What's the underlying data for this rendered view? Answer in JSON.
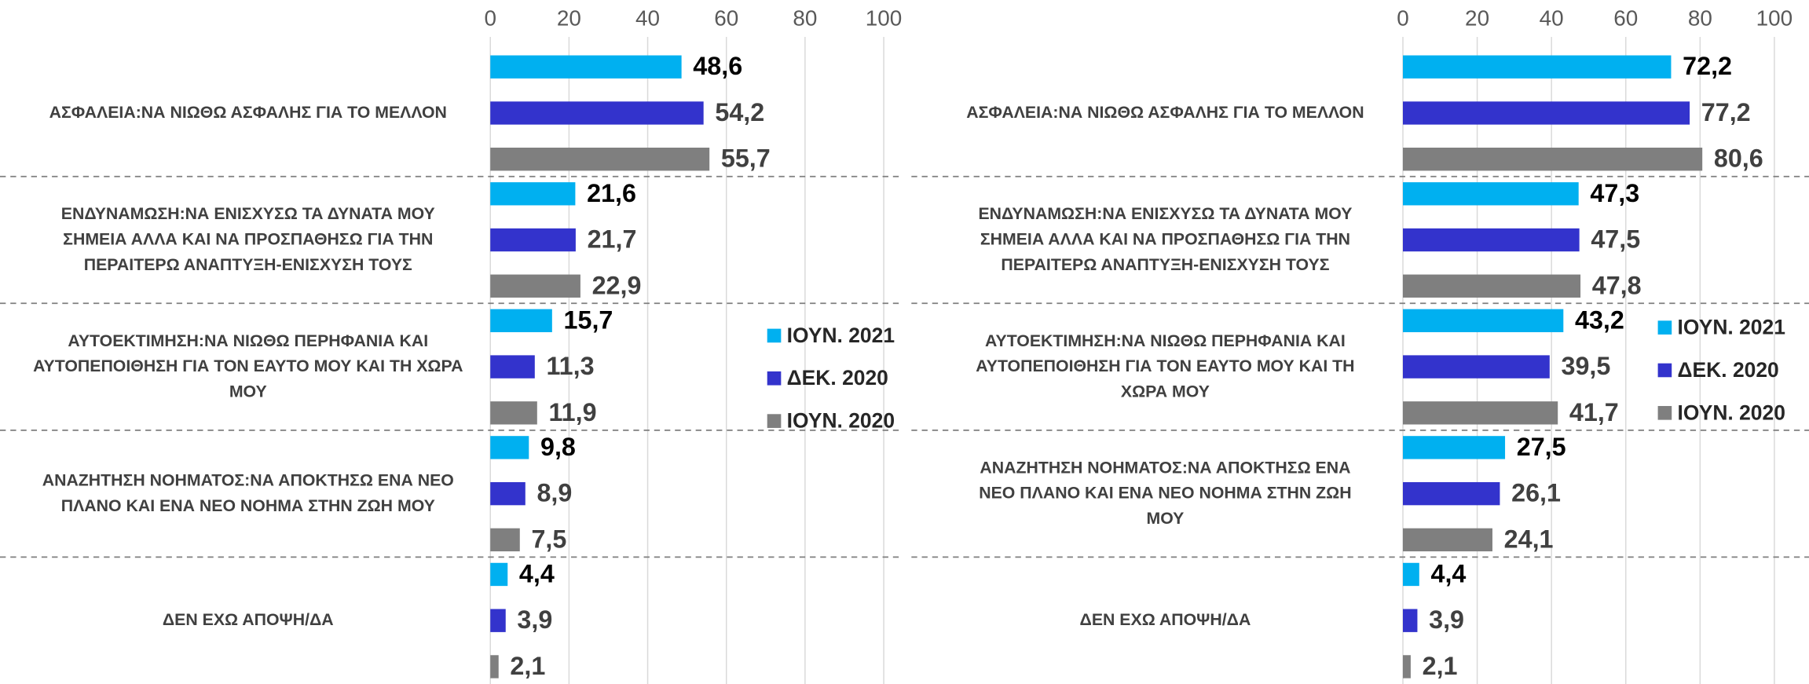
{
  "chart_data": [
    {
      "type": "barh",
      "categories": [
        [
          "ΑΣΦΑΛΕΙΑ:ΝΑ ΝΙΩΘΩ ΑΣΦΑΛΗΣ ΓΙΑ ΤΟ ΜΕΛΛΟΝ"
        ],
        [
          "ΕΝΔΥΝΑΜΩΣΗ:ΝΑ ΕΝΙΣΧΥΣΩ ΤΑ ΔΥΝΑΤΑ ΜΟΥ",
          "ΣΗΜΕΙΑ ΑΛΛΑ ΚΑΙ ΝΑ ΠΡΟΣΠΑΘΗΣΩ ΓΙΑ ΤΗΝ",
          "ΠΕΡΑΙΤΕΡΩ ΑΝΑΠΤΥΞΗ-ΕΝΙΣΧΥΣΗ ΤΟΥΣ"
        ],
        [
          "ΑΥΤΟΕΚΤΙΜΗΣΗ:ΝΑ ΝΙΩΘΩ ΠΕΡΗΦΑΝΙΑ ΚΑΙ",
          "ΑΥΤΟΠΕΠΟΙΘΗΣΗ ΓΙΑ ΤΟΝ ΕΑΥΤΟ ΜΟΥ ΚΑΙ ΤΗ ΧΩΡΑ",
          "ΜΟΥ"
        ],
        [
          "ΑΝΑΖΗΤΗΣΗ ΝΟΗΜΑΤΟΣ:ΝΑ ΑΠΟΚΤΗΣΩ ΕΝΑ ΝΕΟ",
          "ΠΛΑΝΟ ΚΑΙ ΕΝΑ ΝΕΟ ΝΟΗΜΑ ΣΤΗΝ ΖΩΗ ΜΟΥ"
        ],
        [
          "ΔΕΝ ΕΧΩ ΑΠΟΨΗ/ΔΑ"
        ]
      ],
      "series": [
        {
          "name": "ΙΟΥΝ. 2021",
          "color": "#00b0f0",
          "values": [
            48.6,
            21.6,
            15.7,
            9.8,
            4.4
          ],
          "value_labels": [
            "48,6",
            "21,6",
            "15,7",
            "9,8",
            "4,4"
          ]
        },
        {
          "name": "ΔΕΚ. 2020",
          "color": "#3333cc",
          "values": [
            54.2,
            21.7,
            11.3,
            8.9,
            3.9
          ],
          "value_labels": [
            "54,2",
            "21,7",
            "11,3",
            "8,9",
            "3,9"
          ]
        },
        {
          "name": "ΙΟΥΝ. 2020",
          "color": "#7f7f7f",
          "values": [
            55.7,
            22.9,
            11.9,
            7.5,
            2.1
          ],
          "value_labels": [
            "55,7",
            "22,9",
            "11,9",
            "7,5",
            "2,1"
          ]
        }
      ],
      "xlim": [
        0,
        100
      ],
      "xticks": [
        0,
        20,
        40,
        60,
        80,
        100
      ],
      "grid": true,
      "legend": "right"
    },
    {
      "type": "barh",
      "categories": [
        [
          "ΑΣΦΑΛΕΙΑ:ΝΑ ΝΙΩΘΩ ΑΣΦΑΛΗΣ ΓΙΑ ΤΟ ΜΕΛΛΟΝ"
        ],
        [
          "ΕΝΔΥΝΑΜΩΣΗ:ΝΑ ΕΝΙΣΧΥΣΩ ΤΑ ΔΥΝΑΤΑ ΜΟΥ",
          "ΣΗΜΕΙΑ ΑΛΛΑ ΚΑΙ ΝΑ ΠΡΟΣΠΑΘΗΣΩ ΓΙΑ ΤΗΝ",
          "ΠΕΡΑΙΤΕΡΩ ΑΝΑΠΤΥΞΗ-ΕΝΙΣΧΥΣΗ ΤΟΥΣ"
        ],
        [
          "ΑΥΤΟΕΚΤΙΜΗΣΗ:ΝΑ ΝΙΩΘΩ ΠΕΡΗΦΑΝΙΑ ΚΑΙ",
          "ΑΥΤΟΠΕΠΟΙΘΗΣΗ ΓΙΑ ΤΟΝ ΕΑΥΤΟ ΜΟΥ ΚΑΙ ΤΗ",
          "ΧΩΡΑ ΜΟΥ"
        ],
        [
          "ΑΝΑΖΗΤΗΣΗ ΝΟΗΜΑΤΟΣ:ΝΑ ΑΠΟΚΤΗΣΩ ΕΝΑ",
          "ΝΕΟ ΠΛΑΝΟ ΚΑΙ ΕΝΑ ΝΕΟ ΝΟΗΜΑ ΣΤΗΝ ΖΩΗ",
          "ΜΟΥ"
        ],
        [
          "ΔΕΝ ΕΧΩ ΑΠΟΨΗ/ΔΑ"
        ]
      ],
      "series": [
        {
          "name": "ΙΟΥΝ. 2021",
          "color": "#00b0f0",
          "values": [
            72.2,
            47.3,
            43.2,
            27.5,
            4.4
          ],
          "value_labels": [
            "72,2",
            "47,3",
            "43,2",
            "27,5",
            "4,4"
          ]
        },
        {
          "name": "ΔΕΚ. 2020",
          "color": "#3333cc",
          "values": [
            77.2,
            47.5,
            39.5,
            26.1,
            3.9
          ],
          "value_labels": [
            "77,2",
            "47,5",
            "39,5",
            "26,1",
            "3,9"
          ]
        },
        {
          "name": "ΙΟΥΝ. 2020",
          "color": "#7f7f7f",
          "values": [
            80.6,
            47.8,
            41.7,
            24.1,
            2.1
          ],
          "value_labels": [
            "80,6",
            "47,8",
            "41,7",
            "24,1",
            "2,1"
          ]
        }
      ],
      "xlim": [
        0,
        100
      ],
      "xticks": [
        0,
        20,
        40,
        60,
        80,
        100
      ],
      "grid": true,
      "legend": "right"
    }
  ]
}
